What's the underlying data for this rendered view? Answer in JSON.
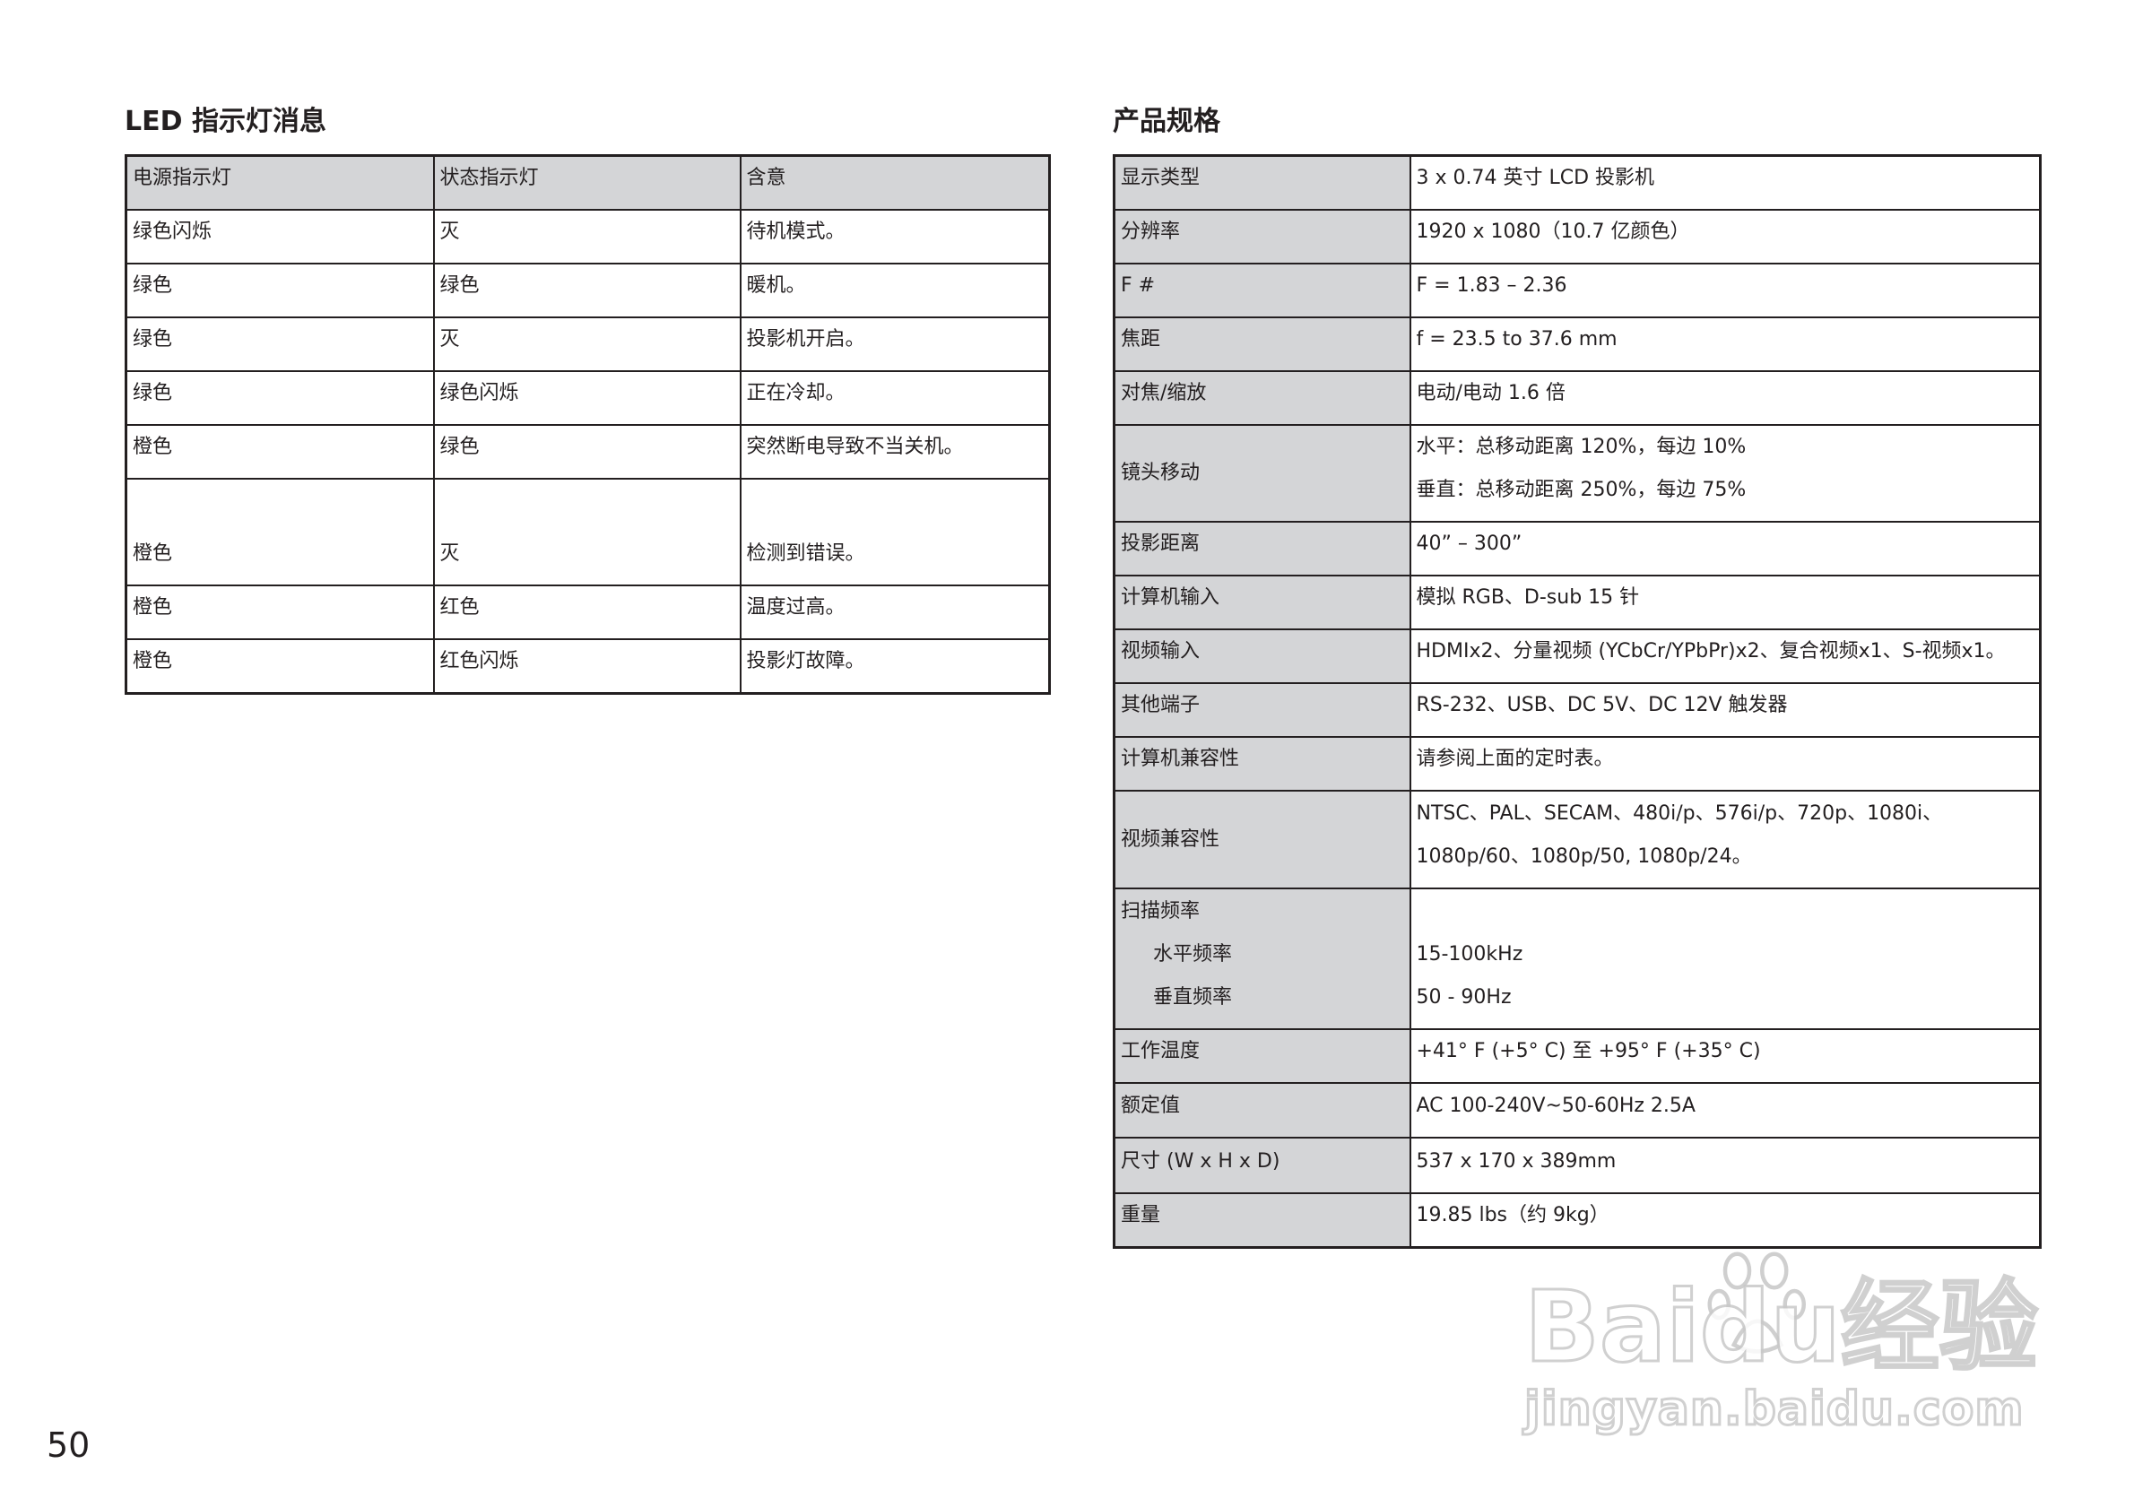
{
  "left": {
    "title": "LED 指示灯消息",
    "headers": [
      "电源指示灯",
      "状态指示灯",
      "含意"
    ],
    "rows": [
      [
        "绿色闪烁",
        "灭",
        "待机模式。"
      ],
      [
        "绿色",
        "绿色",
        "暖机。"
      ],
      [
        "绿色",
        "灭",
        "投影机开启。"
      ],
      [
        "绿色",
        "绿色闪烁",
        "正在冷却。"
      ],
      [
        "橙色",
        "绿色",
        "突然断电导致不当关机。"
      ],
      [
        "橙色",
        "灭",
        "检测到错误。"
      ],
      [
        "橙色",
        "红色",
        "温度过高。"
      ],
      [
        "橙色",
        "红色闪烁",
        "投影灯故障。"
      ]
    ]
  },
  "right": {
    "title": "产品规格",
    "rows": [
      {
        "label": "显示类型",
        "value": "3 x 0.74 英寸 LCD 投影机"
      },
      {
        "label": "分辨率",
        "value": "1920 x 1080（10.7 亿颜色）"
      },
      {
        "label": "F #",
        "value": "F = 1.83 – 2.36"
      },
      {
        "label": "焦距",
        "value": "f = 23.5 to 37.6 mm"
      },
      {
        "label": "对焦/缩放",
        "value": "电动/电动 1.6 倍"
      },
      {
        "label": "镜头移动",
        "value": "水平：总移动距离 120%，每边 10%",
        "value2": "垂直：总移动距离 250%，每边 75%"
      },
      {
        "label": "投影距离",
        "value": "40” – 300”"
      },
      {
        "label": "计算机输入",
        "value": "模拟 RGB、D-sub 15 针"
      },
      {
        "label": "视频输入",
        "value": "HDMIx2、分量视频 (YCbCr/YPbPr)x2、复合视频x1、S-视频x1。"
      },
      {
        "label": "其他端子",
        "value": "RS-232、USB、DC 5V、DC 12V 触发器"
      },
      {
        "label": "计算机兼容性",
        "value": "请参阅上面的定时表。"
      },
      {
        "label": "视频兼容性",
        "value": "NTSC、PAL、SECAM、480i/p、576i/p、720p、1080i、",
        "value2": "1080p/60、1080p/50, 1080p/24。"
      },
      {
        "label": "扫描频率",
        "sub1": "水平频率",
        "sub2": "垂直频率",
        "value": "15-100kHz",
        "value2": "50 - 90Hz"
      },
      {
        "label": "工作温度",
        "value": "+41° F (+5° C) 至 +95° F (+35° C)"
      },
      {
        "label": "额定值",
        "value": "AC 100-240V~50-60Hz 2.5A"
      },
      {
        "label": "尺寸 (W x H x D)",
        "value": "537 x 170 x 389mm"
      },
      {
        "label": "重量",
        "value": "19.85 lbs（约 9kg）"
      }
    ]
  },
  "page_number": "50",
  "watermark": {
    "main": "Baidu经验",
    "sub": "jingyan.baidu.com"
  }
}
